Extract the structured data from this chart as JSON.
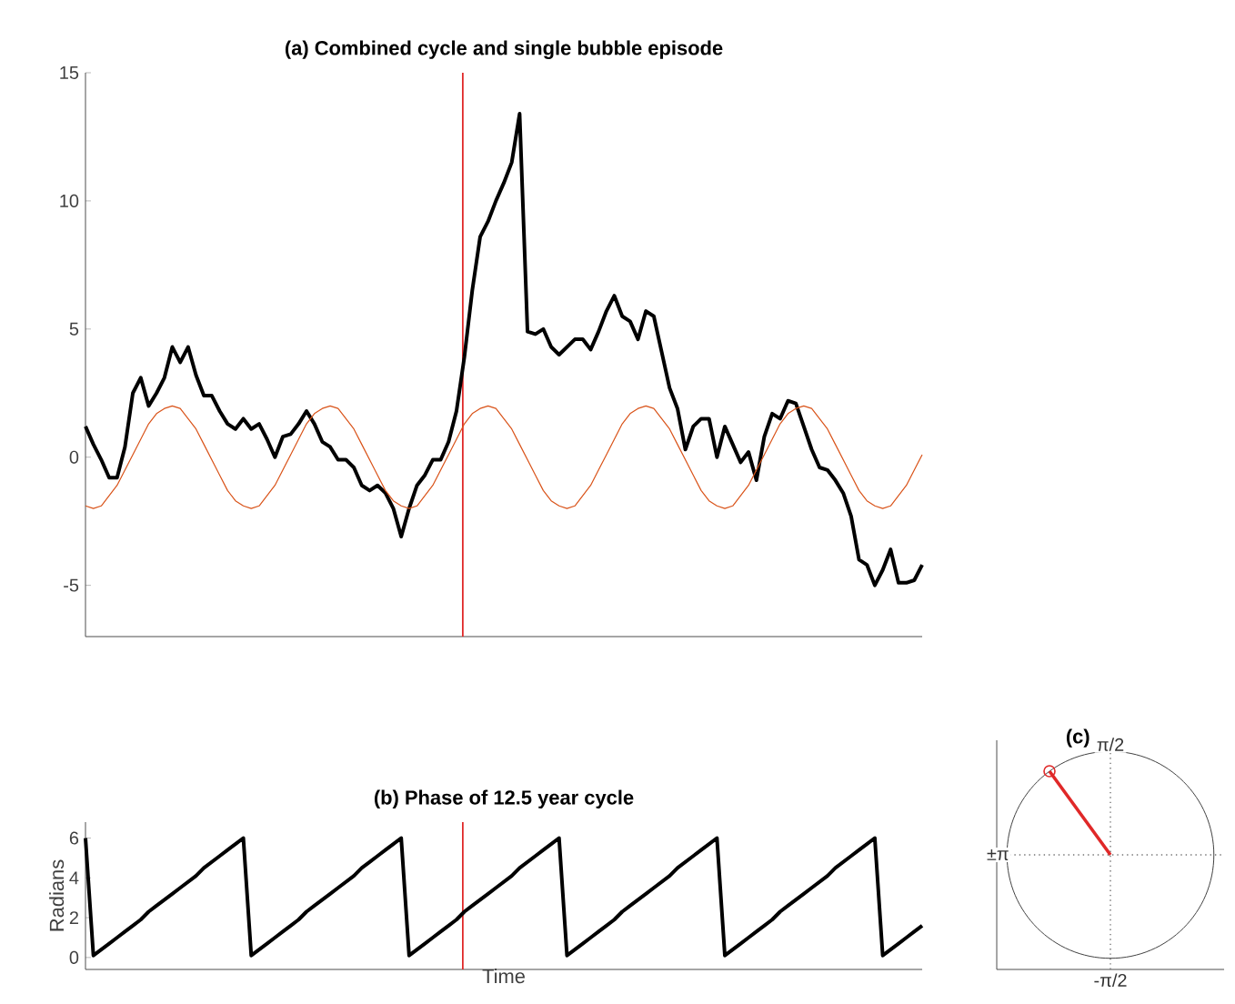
{
  "chart_data": [
    {
      "type": "line",
      "title": "(a) Combined cycle and single bubble episode",
      "categories": [
        null,
        null,
        null,
        null,
        null,
        null,
        null,
        null,
        null,
        null,
        null,
        null,
        null,
        null,
        null,
        null,
        null,
        null,
        null,
        null,
        null,
        null,
        null,
        null,
        null,
        null,
        null,
        null,
        null,
        null,
        null,
        null,
        null,
        null,
        null,
        null,
        null,
        null,
        null,
        null,
        null,
        null,
        null,
        null,
        null,
        null,
        null,
        null,
        null,
        null,
        null,
        null,
        null,
        null,
        null,
        null,
        null,
        null,
        null,
        null,
        null,
        null,
        null,
        null,
        null,
        null,
        null,
        null,
        null,
        null,
        null,
        null,
        null,
        null,
        null,
        null,
        null,
        null,
        null,
        null,
        null,
        null,
        null,
        null,
        null,
        null,
        null,
        null,
        null,
        null,
        null,
        null,
        null,
        null,
        null,
        null,
        null,
        null,
        null,
        null,
        null,
        null,
        null,
        null,
        null,
        null,
        null
      ],
      "ylim": [
        -7,
        15
      ],
      "yticks": [
        -5,
        0,
        5,
        10,
        15
      ],
      "tick_labels": "y",
      "series": [
        {
          "color": "#000000",
          "values": [
            1.2,
            0.5,
            -0.1,
            -0.8,
            -0.8,
            0.4,
            2.5,
            3.1,
            2.0,
            2.5,
            3.1,
            4.3,
            3.7,
            4.3,
            3.2,
            2.4,
            2.4,
            1.8,
            1.3,
            1.1,
            1.5,
            1.1,
            1.3,
            0.7,
            0.0,
            0.8,
            0.9,
            1.3,
            1.8,
            1.3,
            0.6,
            0.4,
            -0.1,
            -0.1,
            -0.4,
            -1.1,
            -1.3,
            -1.1,
            -1.4,
            -2.0,
            -3.1,
            -2.0,
            -1.1,
            -0.7,
            -0.1,
            -0.1,
            0.6,
            1.8,
            3.9,
            6.5,
            8.6,
            9.2,
            10.0,
            10.7,
            11.5,
            13.4,
            4.9,
            4.8,
            5.0,
            4.3,
            4.0,
            4.3,
            4.6,
            4.6,
            4.2,
            4.9,
            5.7,
            6.3,
            5.5,
            5.3,
            4.6,
            5.7,
            5.5,
            4.1,
            2.7,
            1.9,
            0.3,
            1.2,
            1.5,
            1.5,
            0.0,
            1.2,
            0.5,
            -0.2,
            0.2,
            -0.9,
            0.8,
            1.7,
            1.5,
            2.2,
            2.1,
            1.2,
            0.3,
            -0.4,
            -0.5,
            -0.9,
            -1.4,
            -2.3,
            -4.0,
            -4.2,
            -5.0,
            -4.4,
            -3.6,
            -4.9,
            -4.9,
            -4.8,
            -4.2
          ]
        },
        {
          "color": "#d95319",
          "values": [
            -1.9,
            -2.0,
            -1.9,
            -1.5,
            -1.1,
            -0.5,
            0.1,
            0.7,
            1.3,
            1.7,
            1.9,
            2.0,
            1.9,
            1.5,
            1.1,
            0.5,
            -0.1,
            -0.7,
            -1.3,
            -1.7,
            -1.9,
            -2.0,
            -1.9,
            -1.5,
            -1.1,
            -0.5,
            0.1,
            0.7,
            1.3,
            1.7,
            1.9,
            2.0,
            1.9,
            1.5,
            1.1,
            0.5,
            -0.1,
            -0.7,
            -1.3,
            -1.7,
            -1.9,
            -2.0,
            -1.9,
            -1.5,
            -1.1,
            -0.5,
            0.1,
            0.7,
            1.3,
            1.7,
            1.9,
            2.0,
            1.9,
            1.5,
            1.1,
            0.5,
            -0.1,
            -0.7,
            -1.3,
            -1.7,
            -1.9,
            -2.0,
            -1.9,
            -1.5,
            -1.1,
            -0.5,
            0.1,
            0.7,
            1.3,
            1.7,
            1.9,
            2.0,
            1.9,
            1.5,
            1.1,
            0.5,
            -0.1,
            -0.7,
            -1.3,
            -1.7,
            -1.9,
            -2.0,
            -1.9,
            -1.5,
            -1.1,
            -0.5,
            0.1,
            0.7,
            1.3,
            1.7,
            1.9,
            2.0,
            1.9,
            1.5,
            1.1,
            0.5,
            -0.1,
            -0.7,
            -1.3,
            -1.7,
            -1.9,
            -2.0,
            -1.9,
            -1.5,
            -1.1,
            -0.5,
            0.1
          ]
        }
      ]
    },
    {
      "type": "line",
      "title": "(b) Phase of 12.5 year cycle",
      "xlabel": "Time",
      "ylabel": "Radians",
      "categories": [
        null,
        null,
        null,
        null,
        null,
        null,
        null,
        null,
        null,
        null,
        null,
        null,
        null,
        null,
        null,
        null,
        null,
        null,
        null,
        null,
        null,
        null,
        null,
        null,
        null,
        null,
        null,
        null,
        null,
        null,
        null,
        null,
        null,
        null,
        null,
        null,
        null,
        null,
        null,
        null,
        null,
        null,
        null,
        null,
        null,
        null,
        null,
        null,
        null,
        null,
        null,
        null,
        null,
        null,
        null,
        null,
        null,
        null,
        null,
        null,
        null,
        null,
        null,
        null,
        null,
        null,
        null,
        null,
        null,
        null,
        null,
        null,
        null,
        null,
        null,
        null,
        null,
        null,
        null,
        null,
        null,
        null,
        null,
        null,
        null,
        null,
        null,
        null,
        null,
        null,
        null,
        null,
        null,
        null,
        null,
        null,
        null,
        null,
        null,
        null,
        null,
        null,
        null,
        null,
        null,
        null,
        null
      ],
      "ylim": [
        -0.6,
        6.8
      ],
      "yticks": [
        0,
        2,
        4,
        6
      ],
      "tick_labels": "y",
      "series": [
        {
          "color": "#000000",
          "values": [
            6.0,
            0.1,
            0.4,
            0.7,
            1.0,
            1.3,
            1.6,
            1.9,
            2.3,
            2.6,
            2.9,
            3.2,
            3.5,
            3.8,
            4.1,
            4.5,
            4.8,
            5.1,
            5.4,
            5.7,
            6.0,
            0.1,
            0.4,
            0.7,
            1.0,
            1.3,
            1.6,
            1.9,
            2.3,
            2.6,
            2.9,
            3.2,
            3.5,
            3.8,
            4.1,
            4.5,
            4.8,
            5.1,
            5.4,
            5.7,
            6.0,
            0.1,
            0.4,
            0.7,
            1.0,
            1.3,
            1.6,
            1.9,
            2.3,
            2.6,
            2.9,
            3.2,
            3.5,
            3.8,
            4.1,
            4.5,
            4.8,
            5.1,
            5.4,
            5.7,
            6.0,
            0.1,
            0.4,
            0.7,
            1.0,
            1.3,
            1.6,
            1.9,
            2.3,
            2.6,
            2.9,
            3.2,
            3.5,
            3.8,
            4.1,
            4.5,
            4.8,
            5.1,
            5.4,
            5.7,
            6.0,
            0.1,
            0.4,
            0.7,
            1.0,
            1.3,
            1.6,
            1.9,
            2.3,
            2.6,
            2.9,
            3.2,
            3.5,
            3.8,
            4.1,
            4.5,
            4.8,
            5.1,
            5.4,
            5.7,
            6.0,
            0.1,
            0.4,
            0.7,
            1.0,
            1.3,
            1.6
          ]
        }
      ]
    },
    {
      "type": "other",
      "title": "(c)",
      "annotations": [
        "π/2",
        "-π/2",
        "±π"
      ]
    }
  ]
}
